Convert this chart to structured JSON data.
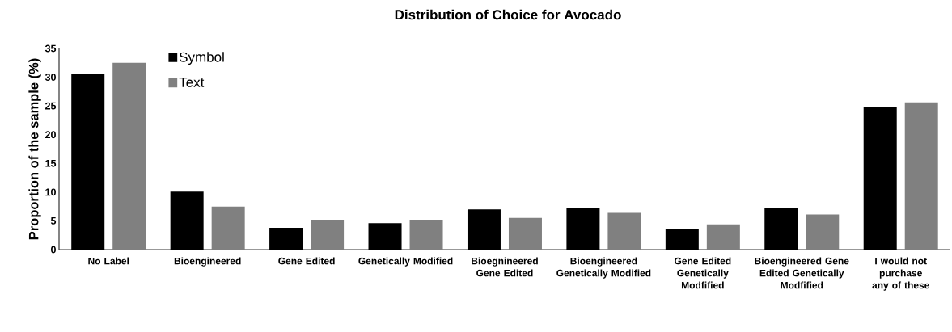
{
  "chart_data": {
    "type": "bar",
    "title": "Distribution of Choice for Avocado",
    "ylabel": "Proportion of the sample (%)",
    "categories": [
      "No Label",
      "Bioengineered",
      "Gene Edited",
      "Genetically Modified",
      "Bioegnineered Gene Edited",
      "Bioengineered Genetically Modified",
      "Gene Edited Genetically Modfified",
      "Bioengineered Gene Edited Genetically Modfified",
      "I would not purchase any of these"
    ],
    "series": [
      {
        "name": "Symbol",
        "color": "#000000",
        "values": [
          30.5,
          10.1,
          3.8,
          4.6,
          7.0,
          7.3,
          3.5,
          7.3,
          24.8
        ]
      },
      {
        "name": "Text",
        "color": "#808080",
        "values": [
          32.5,
          7.5,
          5.2,
          5.2,
          5.5,
          6.4,
          4.4,
          6.1,
          25.6
        ]
      }
    ],
    "ylim": [
      0,
      35
    ],
    "yticks": [
      0,
      5,
      10,
      15,
      20,
      25,
      30,
      35
    ],
    "legend": "top left",
    "grid": false
  }
}
